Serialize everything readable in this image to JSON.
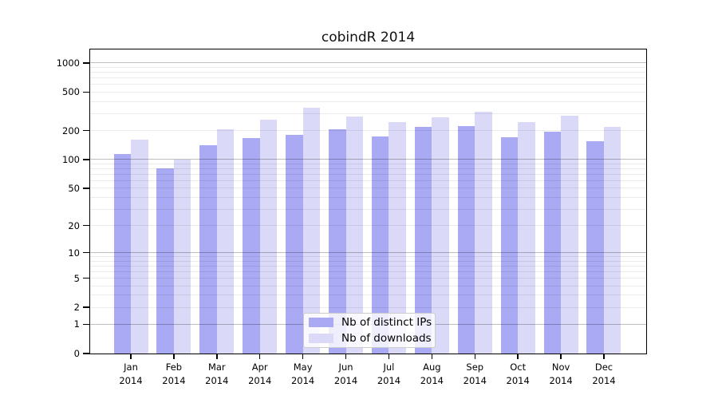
{
  "chart_data": {
    "type": "bar",
    "title": "cobindR 2014",
    "categories": [
      "Jan 2014",
      "Feb 2014",
      "Mar 2014",
      "Apr 2014",
      "May 2014",
      "Jun 2014",
      "Jul 2014",
      "Aug 2014",
      "Sep 2014",
      "Oct 2014",
      "Nov 2014",
      "Dec 2014"
    ],
    "month_labels": [
      "Jan",
      "Feb",
      "Mar",
      "Apr",
      "May",
      "Jun",
      "Jul",
      "Aug",
      "Sep",
      "Oct",
      "Nov",
      "Dec"
    ],
    "year_label": "2014",
    "series": [
      {
        "name": "Nb of distinct IPs",
        "color": "#a9a9f4",
        "values": [
          114,
          80,
          140,
          167,
          180,
          207,
          172,
          217,
          224,
          170,
          194,
          156
        ]
      },
      {
        "name": "Nb of downloads",
        "color": "#dadaf8",
        "values": [
          160,
          100,
          207,
          258,
          345,
          280,
          247,
          272,
          315,
          244,
          286,
          217
        ]
      }
    ],
    "y_axis": {
      "scale": "log10(1+x)",
      "tick_labels": [
        "1000",
        "500",
        "200",
        "100",
        "50",
        "20",
        "10",
        "5",
        "2",
        "1",
        "0"
      ],
      "tick_values": [
        1000,
        500,
        200,
        100,
        50,
        20,
        10,
        5,
        2,
        1,
        0
      ],
      "major_gridlines": [
        1,
        10,
        100,
        1000
      ],
      "minor_gridlines": [
        2,
        3,
        4,
        5,
        6,
        7,
        8,
        9,
        20,
        30,
        40,
        50,
        60,
        70,
        80,
        90,
        200,
        300,
        400,
        500,
        600,
        700,
        800,
        900
      ],
      "ylim": [
        0,
        1385
      ]
    },
    "legend": {
      "position": "lower center",
      "items": [
        "Nb of distinct IPs",
        "Nb of downloads"
      ]
    },
    "grid": true
  },
  "colors": {
    "axis_line": "#000000",
    "major_gridline": "rgba(0,0,0,0.26)",
    "minor_gridline": "rgba(0,0,0,0.08)",
    "legend_border": "#cccccc",
    "legend_background": "rgba(255,255,255,0.8)",
    "distinct_ips_bar": "#a9a9f4",
    "downloads_bar": "#dadaf8"
  }
}
